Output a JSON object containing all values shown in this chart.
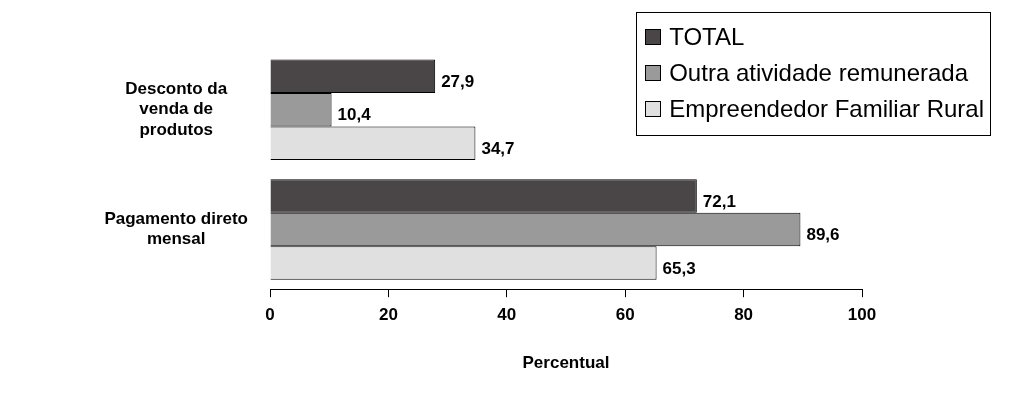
{
  "chart_data": {
    "type": "bar",
    "orientation": "horizontal",
    "xlabel": "Percentual",
    "categories": [
      "Desconto da venda de produtos",
      "Pagamento direto mensal"
    ],
    "series": [
      {
        "name": "TOTAL",
        "color": "#4a4547",
        "values": [
          27.9,
          72.1
        ],
        "value_labels": [
          "27,9",
          "72,1"
        ]
      },
      {
        "name": "Outra atividade remunerada",
        "color": "#9a9a9a",
        "values": [
          10.4,
          89.6
        ],
        "value_labels": [
          "10,4",
          "89,6"
        ]
      },
      {
        "name": "Empreendedor Familiar Rural",
        "color": "#e0e0e0",
        "values": [
          34.7,
          65.3
        ],
        "value_labels": [
          "34,7",
          "65,3"
        ]
      }
    ],
    "xlim": [
      0,
      100
    ],
    "xticks": [
      0,
      20,
      40,
      60,
      80,
      100
    ],
    "grid": false,
    "legend": "top right"
  }
}
